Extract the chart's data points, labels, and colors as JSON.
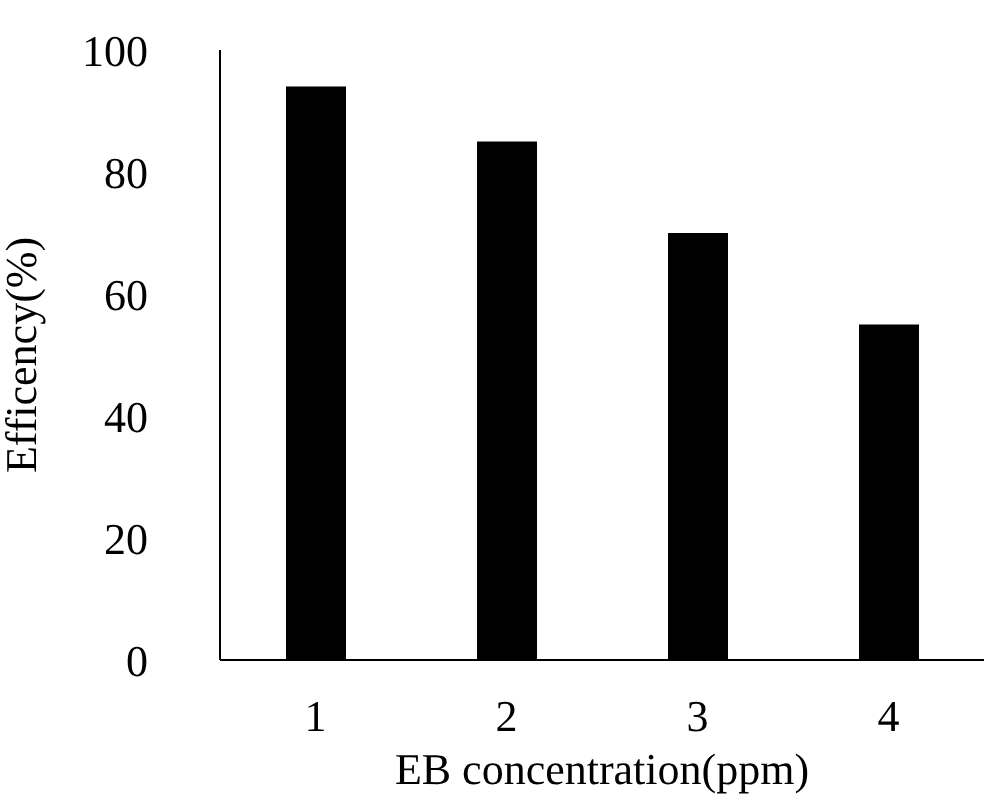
{
  "chart_data": {
    "type": "bar",
    "xlabel": "EB concentration(ppm)",
    "ylabel": "Efficency(%)",
    "categories": [
      "1",
      "2",
      "3",
      "4"
    ],
    "values": [
      94,
      85,
      70,
      55
    ],
    "color": "#000000",
    "ylim": [
      0,
      100
    ],
    "yticks": [
      0,
      20,
      40,
      60,
      80,
      100
    ],
    "grid": false,
    "legend": false
  }
}
